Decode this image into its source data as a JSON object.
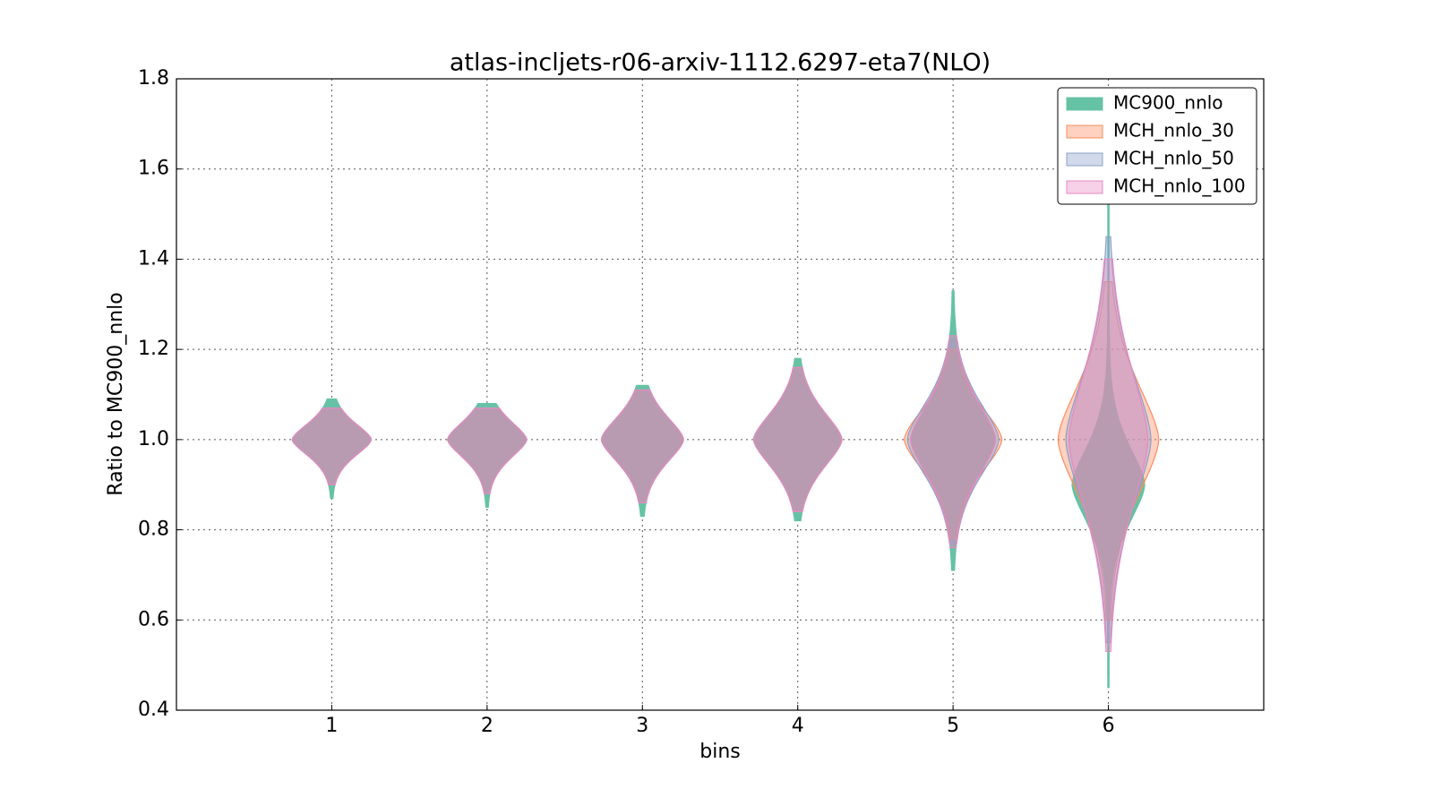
{
  "chart_data": {
    "type": "violin",
    "title": "atlas-incljets-r06-arxiv-1112.6297-eta7(NLO)",
    "x_label": "bins",
    "y_label": "Ratio to MC900_nnlo",
    "categories": [
      "1",
      "2",
      "3",
      "4",
      "5",
      "6"
    ],
    "xlim": [
      0,
      7
    ],
    "xticks": [
      1,
      2,
      3,
      4,
      5,
      6
    ],
    "ylim": [
      0.4,
      1.8
    ],
    "yticks": [
      0.4,
      0.6,
      0.8,
      1.0,
      1.2,
      1.4,
      1.6,
      1.8
    ],
    "grid": true,
    "legend": "upper right",
    "series": [
      {
        "name": "MC900_nnlo",
        "color": "#66c2a5",
        "min": [
          0.87,
          0.85,
          0.83,
          0.82,
          0.71,
          0.45
        ],
        "max": [
          1.09,
          1.08,
          1.12,
          1.18,
          1.33,
          1.62
        ],
        "mode": [
          1.0,
          1.0,
          1.0,
          1.0,
          1.0,
          0.9
        ],
        "width": [
          0.25,
          0.25,
          0.26,
          0.28,
          0.27,
          0.23
        ],
        "spread": [
          0.035,
          0.04,
          0.05,
          0.06,
          0.08,
          0.08
        ]
      },
      {
        "name": "MCH_nnlo_30",
        "color": "#fc8d62",
        "min": [
          0.9,
          0.88,
          0.86,
          0.84,
          0.78,
          0.6
        ],
        "max": [
          1.07,
          1.07,
          1.11,
          1.16,
          1.2,
          1.35
        ],
        "mode": [
          1.0,
          1.0,
          1.0,
          1.0,
          1.0,
          1.0
        ],
        "width": [
          0.25,
          0.25,
          0.26,
          0.28,
          0.31,
          0.32
        ],
        "spread": [
          0.035,
          0.04,
          0.05,
          0.06,
          0.07,
          0.12
        ]
      },
      {
        "name": "MCH_nnlo_50",
        "color": "#8da0cb",
        "min": [
          0.9,
          0.88,
          0.86,
          0.84,
          0.77,
          0.55
        ],
        "max": [
          1.07,
          1.07,
          1.11,
          1.16,
          1.22,
          1.45
        ],
        "mode": [
          1.0,
          1.0,
          1.0,
          1.0,
          1.0,
          1.0
        ],
        "width": [
          0.25,
          0.25,
          0.26,
          0.28,
          0.29,
          0.27
        ],
        "spread": [
          0.035,
          0.04,
          0.05,
          0.06,
          0.08,
          0.14
        ]
      },
      {
        "name": "MCH_nnlo_100",
        "color": "#e78ac3",
        "min": [
          0.9,
          0.88,
          0.86,
          0.84,
          0.76,
          0.53
        ],
        "max": [
          1.07,
          1.07,
          1.11,
          1.16,
          1.23,
          1.4
        ],
        "mode": [
          1.0,
          1.0,
          1.0,
          1.0,
          1.0,
          1.0
        ],
        "width": [
          0.25,
          0.25,
          0.26,
          0.28,
          0.27,
          0.25
        ],
        "spread": [
          0.035,
          0.04,
          0.05,
          0.06,
          0.08,
          0.15
        ]
      }
    ]
  }
}
